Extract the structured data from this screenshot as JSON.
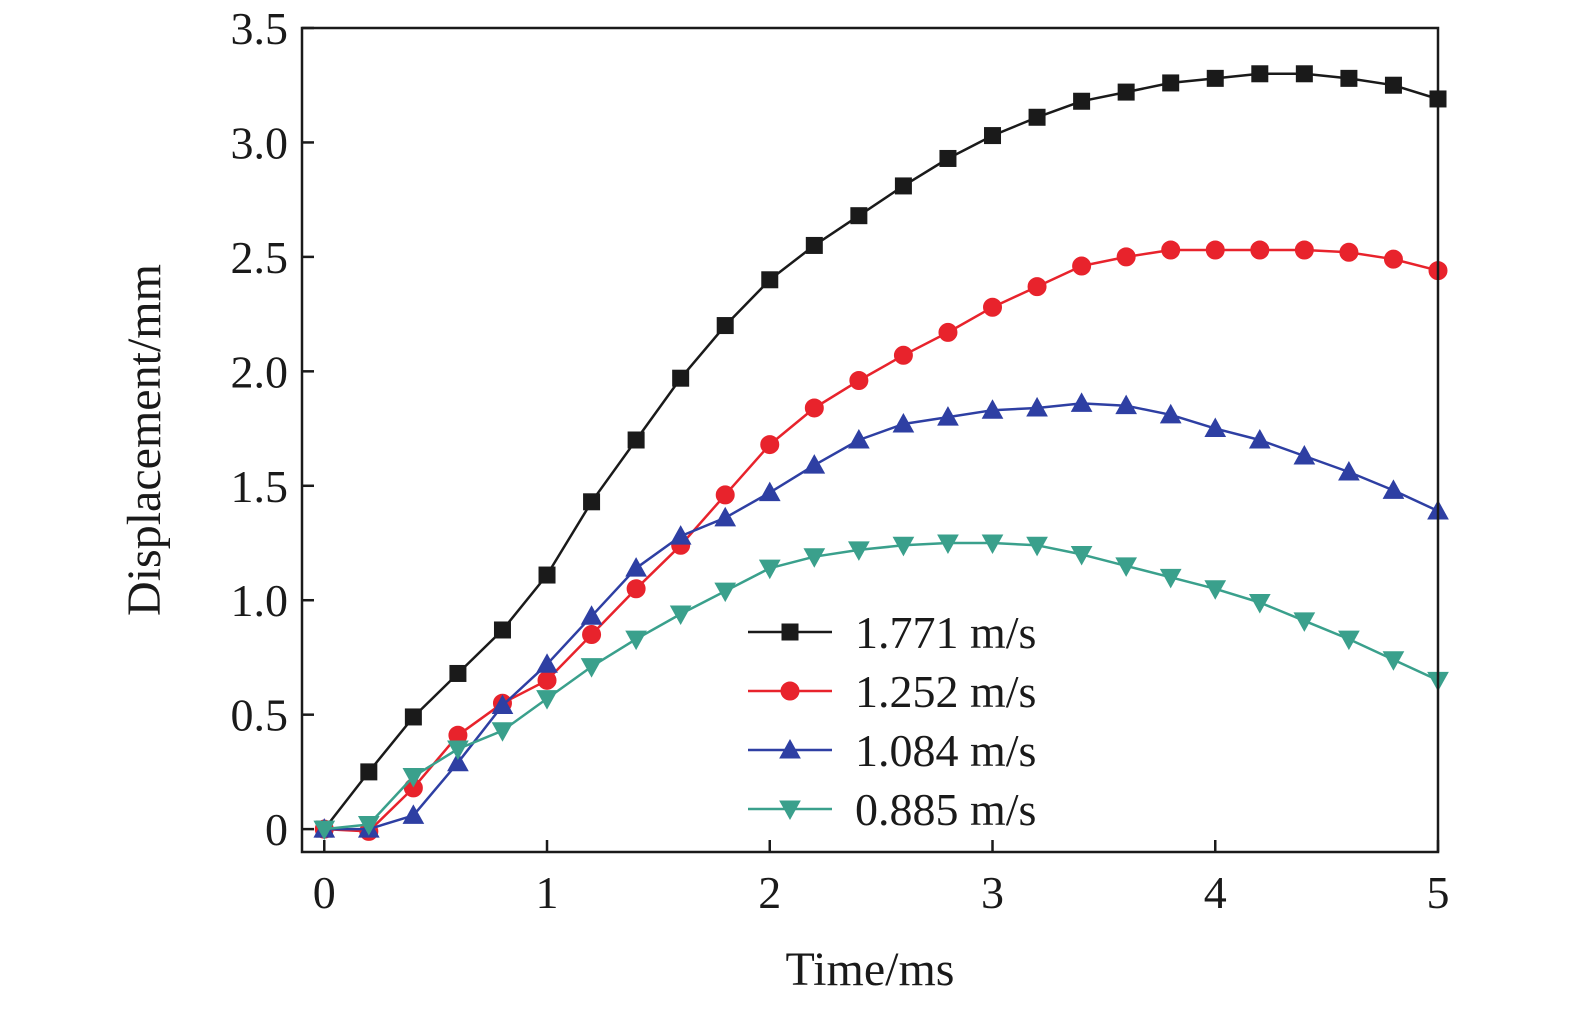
{
  "chart_data": {
    "type": "line",
    "xlabel": "Time/ms",
    "ylabel": "Displacement/mm",
    "xlim": [
      -0.1,
      5
    ],
    "ylim": [
      -0.1,
      3.5
    ],
    "xticks": [
      0,
      1,
      2,
      3,
      4,
      5
    ],
    "xtick_labels": [
      "0",
      "1",
      "2",
      "3",
      "4",
      "5"
    ],
    "yticks": [
      0,
      0.5,
      1.0,
      1.5,
      2.0,
      2.5,
      3.0,
      3.5
    ],
    "ytick_labels": [
      "0",
      "0.5",
      "1.0",
      "1.5",
      "2.0",
      "2.5",
      "3.0",
      "3.5"
    ],
    "grid": false,
    "legend_position": "bottom-right",
    "x": [
      0,
      0.2,
      0.4,
      0.6,
      0.8,
      1.0,
      1.2,
      1.4,
      1.6,
      1.8,
      2.0,
      2.2,
      2.4,
      2.6,
      2.8,
      3.0,
      3.2,
      3.4,
      3.6,
      3.8,
      4.0,
      4.2,
      4.4,
      4.6,
      4.8,
      5.0
    ],
    "series": [
      {
        "name": "1.771 m/s",
        "color": "#1a1a1a",
        "marker": "square",
        "values": [
          0,
          0.25,
          0.49,
          0.68,
          0.87,
          1.11,
          1.43,
          1.7,
          1.97,
          2.2,
          2.4,
          2.55,
          2.68,
          2.81,
          2.93,
          3.03,
          3.11,
          3.18,
          3.22,
          3.26,
          3.28,
          3.3,
          3.3,
          3.28,
          3.25,
          3.19
        ]
      },
      {
        "name": "1.252 m/s",
        "color": "#e8232c",
        "marker": "circle",
        "values": [
          0,
          -0.01,
          0.18,
          0.41,
          0.55,
          0.65,
          0.85,
          1.05,
          1.24,
          1.46,
          1.68,
          1.84,
          1.96,
          2.07,
          2.17,
          2.28,
          2.37,
          2.46,
          2.5,
          2.53,
          2.53,
          2.53,
          2.53,
          2.52,
          2.49,
          2.44
        ]
      },
      {
        "name": "1.084 m/s",
        "color": "#2e3fa3",
        "marker": "triangle-up",
        "values": [
          0,
          0,
          0.06,
          0.29,
          0.54,
          0.72,
          0.93,
          1.14,
          1.28,
          1.36,
          1.47,
          1.59,
          1.7,
          1.77,
          1.8,
          1.83,
          1.84,
          1.86,
          1.85,
          1.81,
          1.75,
          1.7,
          1.63,
          1.56,
          1.48,
          1.39
        ]
      },
      {
        "name": "0.885 m/s",
        "color": "#3aa08c",
        "marker": "triangle-down",
        "values": [
          0,
          0.02,
          0.23,
          0.35,
          0.43,
          0.57,
          0.71,
          0.83,
          0.94,
          1.04,
          1.14,
          1.19,
          1.22,
          1.24,
          1.25,
          1.25,
          1.24,
          1.2,
          1.15,
          1.1,
          1.05,
          0.99,
          0.91,
          0.83,
          0.74,
          0.65
        ]
      }
    ]
  }
}
